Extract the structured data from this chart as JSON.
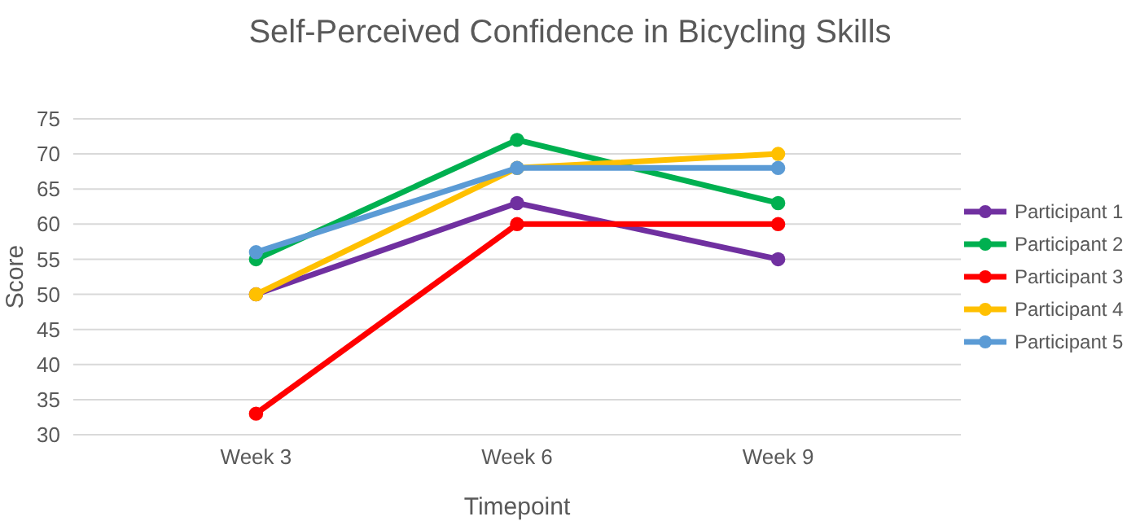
{
  "chart_data": {
    "type": "line",
    "title": "Self-Perceived Confidence in Bicycling Skills",
    "xlabel": "Timepoint",
    "ylabel": "Score",
    "categories": [
      "Week 3",
      "Week 6",
      "Week 9"
    ],
    "series": [
      {
        "name": "Participant 1",
        "color": "#7030a0",
        "values": [
          50,
          63,
          55
        ]
      },
      {
        "name": "Participant 2",
        "color": "#00b050",
        "values": [
          55,
          72,
          63
        ]
      },
      {
        "name": "Participant 3",
        "color": "#ff0000",
        "values": [
          33,
          60,
          60
        ]
      },
      {
        "name": "Participant 4",
        "color": "#ffc000",
        "values": [
          50,
          68,
          70
        ]
      },
      {
        "name": "Participant 5",
        "color": "#5b9bd5",
        "values": [
          56,
          68,
          68
        ]
      }
    ],
    "ylim": [
      30,
      75
    ],
    "yticks": [
      30,
      35,
      40,
      45,
      50,
      55,
      60,
      65,
      70,
      75
    ],
    "grid": "y",
    "legend": "right",
    "marker": "circle",
    "line_style": "solid"
  }
}
